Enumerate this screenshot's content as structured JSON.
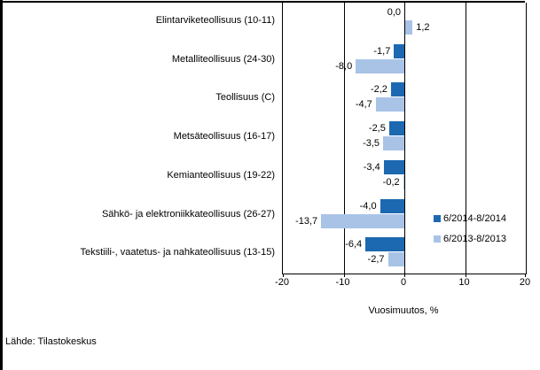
{
  "chart_data": {
    "type": "bar",
    "orientation": "horizontal",
    "title": "",
    "xlabel": "Vuosimuutos, %",
    "xlim": [
      -20,
      20
    ],
    "x_ticks": [
      "-20",
      "-10",
      "0",
      "10",
      "20"
    ],
    "grid": true,
    "legend_position": "right-center",
    "categories": [
      "Elintarviketeollisuus (10-11)",
      "Metalliteollisuus (24-30)",
      "Teollisuus (C)",
      "Metsäteollisuus (16-17)",
      "Kemianteollisuus (19-22)",
      "Sähkö- ja elektroniikkateollisuus (26-27)",
      "Tekstiili-, vaatetus- ja nahkateollisuus (13-15)"
    ],
    "series": [
      {
        "name": "6/2014-8/2014",
        "color": "#1C69B1",
        "values": [
          0.0,
          -1.7,
          -2.2,
          -2.5,
          -3.4,
          -4.0,
          -6.4
        ],
        "value_labels": [
          "0,0",
          "-1,7",
          "-2,2",
          "-2,5",
          "-3,4",
          "-4,0",
          "-6,4"
        ]
      },
      {
        "name": "6/2013-8/2013",
        "color": "#A9C3E7",
        "values": [
          1.2,
          -8.0,
          -4.7,
          -3.5,
          -0.2,
          -13.7,
          -2.7
        ],
        "value_labels": [
          "1,2",
          "-8,0",
          "-4,7",
          "-3,5",
          "-0,2",
          "-13,7",
          "-2,7"
        ]
      }
    ]
  },
  "colors": {
    "series_dark": "#1C69B1",
    "series_light": "#A9C3E7",
    "axis": "#000000",
    "background": "#ffffff"
  },
  "source": "Lähde: Tilastokeskus"
}
